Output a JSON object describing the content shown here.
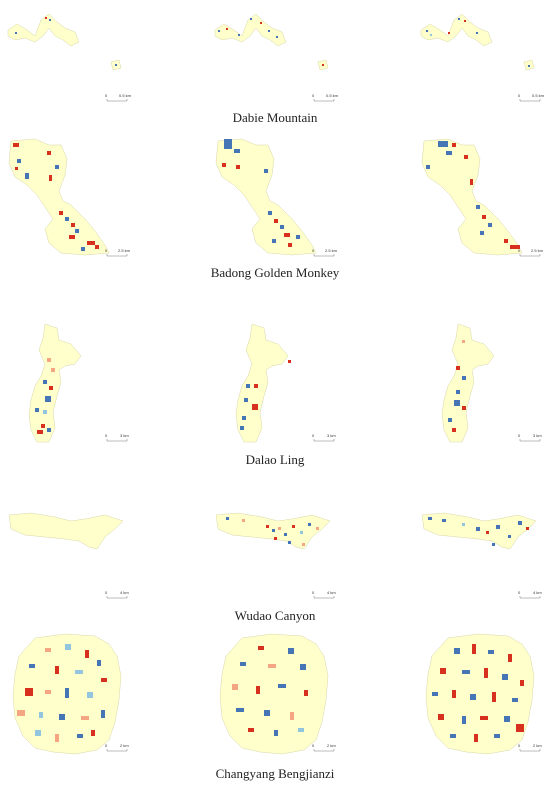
{
  "figure": {
    "rows": [
      {
        "name": "Dabie Mountain",
        "scale_unit": "0.5 km",
        "scale_zero": "0"
      },
      {
        "name": "Badong Golden Monkey",
        "scale_unit": "2.5 km",
        "scale_zero": "0"
      },
      {
        "name": "Dalao Ling",
        "scale_unit": "3 km",
        "scale_zero": "0"
      },
      {
        "name": "Wudao Canyon",
        "scale_unit": "4 km",
        "scale_zero": "0"
      },
      {
        "name": "Changyang Bengjianzi",
        "scale_unit": "2 km",
        "scale_zero": "0"
      }
    ]
  },
  "colors": {
    "land": "#ffffcc",
    "outline": "#d8d6a8",
    "red": "#d7301f",
    "blue": "#4575b4",
    "pink": "#f4a582",
    "lightblue": "#92c5de"
  }
}
